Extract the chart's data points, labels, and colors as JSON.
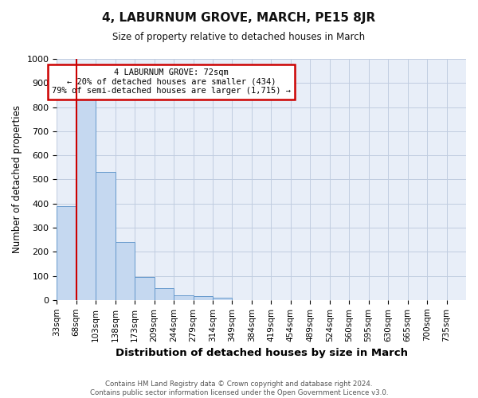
{
  "title": "4, LABURNUM GROVE, MARCH, PE15 8JR",
  "subtitle": "Size of property relative to detached houses in March",
  "xlabel": "Distribution of detached houses by size in March",
  "ylabel": "Number of detached properties",
  "bar_labels": [
    "33sqm",
    "68sqm",
    "103sqm",
    "138sqm",
    "173sqm",
    "209sqm",
    "244sqm",
    "279sqm",
    "314sqm",
    "349sqm",
    "384sqm",
    "419sqm",
    "454sqm",
    "489sqm",
    "524sqm",
    "560sqm",
    "595sqm",
    "630sqm",
    "665sqm",
    "700sqm",
    "735sqm"
  ],
  "bar_values": [
    390,
    835,
    530,
    240,
    95,
    50,
    20,
    15,
    10,
    0,
    0,
    0,
    0,
    0,
    0,
    0,
    0,
    0,
    0,
    0,
    0
  ],
  "bar_color": "#c5d8f0",
  "bar_edge_color": "#6699cc",
  "vline_color": "#cc0000",
  "ylim": [
    0,
    1000
  ],
  "yticks": [
    0,
    100,
    200,
    300,
    400,
    500,
    600,
    700,
    800,
    900,
    1000
  ],
  "annotation_box_text": "4 LABURNUM GROVE: 72sqm\n← 20% of detached houses are smaller (434)\n79% of semi-detached houses are larger (1,715) →",
  "annotation_box_color": "#cc0000",
  "footer_line1": "Contains HM Land Registry data © Crown copyright and database right 2024.",
  "footer_line2": "Contains public sector information licensed under the Open Government Licence v3.0.",
  "background_color": "#e8eef8",
  "grid_color": "#c0cce0",
  "fig_bg": "#ffffff"
}
